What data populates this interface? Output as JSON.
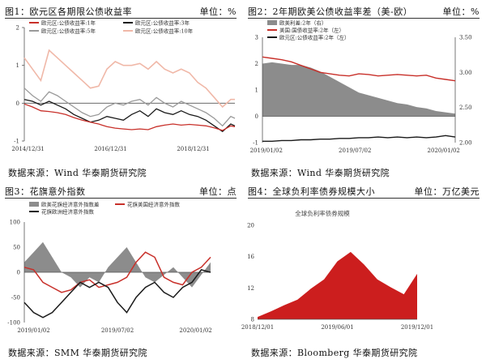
{
  "charts": [
    {
      "header": {
        "title": "图1：欧元区各期限公债收益率",
        "unit": "单位：%"
      },
      "source": "数据来源：Wind 华泰期货研究院"
    },
    {
      "header": {
        "title": "图2：2年期欧美公债收益率差（美-欧）",
        "unit": "单位：%"
      },
      "source": "数据来源：Wind 华泰期货研究院"
    },
    {
      "header": {
        "title": "图3：花旗意外指数",
        "unit": "单位：点"
      },
      "source": "数据来源：SMM 华泰期货研究院"
    },
    {
      "header": {
        "title": "图4：全球负利率债券规模大小",
        "unit": "单位：万亿美元"
      },
      "source": "数据来源：Bloomberg 华泰期货研究院"
    }
  ],
  "chart_data": [
    {
      "type": "line",
      "x_ticks": [
        "2014/12/31",
        "2016/12/31",
        "2018/12/31"
      ],
      "ylim": [
        -1,
        2
      ],
      "y_ticks": [
        -1,
        0,
        1,
        2
      ],
      "legend_position": "top",
      "series": [
        {
          "name": "欧元区:公债收益率:1年",
          "color": "#c8302a",
          "x": [
            2014.9,
            2015.1,
            2015.3,
            2015.5,
            2015.7,
            2015.9,
            2016.1,
            2016.3,
            2016.5,
            2016.7,
            2016.9,
            2017.1,
            2017.3,
            2017.5,
            2017.7,
            2017.9,
            2018.1,
            2018.3,
            2018.5,
            2018.7,
            2018.9,
            2019.1,
            2019.3,
            2019.5,
            2019.7,
            2019.9,
            2020.0
          ],
          "y": [
            -0.02,
            -0.1,
            -0.2,
            -0.22,
            -0.25,
            -0.3,
            -0.38,
            -0.45,
            -0.5,
            -0.55,
            -0.62,
            -0.66,
            -0.68,
            -0.7,
            -0.68,
            -0.7,
            -0.62,
            -0.58,
            -0.55,
            -0.58,
            -0.56,
            -0.58,
            -0.6,
            -0.65,
            -0.72,
            -0.6,
            -0.62
          ]
        },
        {
          "name": "欧元区:公债收益率:3年",
          "color": "#1a1a1a",
          "x": [
            2014.9,
            2015.1,
            2015.3,
            2015.5,
            2015.7,
            2015.9,
            2016.1,
            2016.3,
            2016.5,
            2016.7,
            2016.9,
            2017.1,
            2017.3,
            2017.5,
            2017.7,
            2017.9,
            2018.1,
            2018.3,
            2018.5,
            2018.7,
            2018.9,
            2019.1,
            2019.3,
            2019.5,
            2019.7,
            2019.9,
            2020.0
          ],
          "y": [
            0.1,
            0.05,
            -0.05,
            0.05,
            -0.05,
            -0.15,
            -0.3,
            -0.4,
            -0.5,
            -0.45,
            -0.35,
            -0.4,
            -0.45,
            -0.3,
            -0.2,
            -0.35,
            -0.15,
            -0.25,
            -0.3,
            -0.2,
            -0.3,
            -0.35,
            -0.45,
            -0.6,
            -0.75,
            -0.55,
            -0.6
          ]
        },
        {
          "name": "欧元区:公债收益率:5年",
          "color": "#9a9a9a",
          "x": [
            2014.9,
            2015.1,
            2015.3,
            2015.5,
            2015.7,
            2015.9,
            2016.1,
            2016.3,
            2016.5,
            2016.7,
            2016.9,
            2017.1,
            2017.3,
            2017.5,
            2017.7,
            2017.9,
            2018.1,
            2018.3,
            2018.5,
            2018.7,
            2018.9,
            2019.1,
            2019.3,
            2019.5,
            2019.7,
            2019.9,
            2020.0
          ],
          "y": [
            0.4,
            0.2,
            0.05,
            0.3,
            0.2,
            0.05,
            -0.1,
            -0.25,
            -0.35,
            -0.3,
            -0.1,
            0.0,
            -0.05,
            0.05,
            0.1,
            -0.05,
            0.15,
            0.0,
            -0.1,
            0.05,
            -0.05,
            -0.15,
            -0.25,
            -0.4,
            -0.6,
            -0.35,
            -0.4
          ]
        },
        {
          "name": "欧元区:公债收益率:10年",
          "color": "#f0b8a8",
          "x": [
            2014.9,
            2015.1,
            2015.3,
            2015.5,
            2015.7,
            2015.9,
            2016.1,
            2016.3,
            2016.5,
            2016.7,
            2016.9,
            2017.1,
            2017.3,
            2017.5,
            2017.7,
            2017.9,
            2018.1,
            2018.3,
            2018.5,
            2018.7,
            2018.9,
            2019.1,
            2019.3,
            2019.5,
            2019.7,
            2019.9,
            2020.0
          ],
          "y": [
            1.2,
            0.9,
            0.6,
            1.4,
            1.2,
            1.0,
            0.8,
            0.6,
            0.4,
            0.45,
            0.9,
            1.1,
            1.0,
            1.0,
            1.05,
            0.9,
            1.1,
            0.9,
            0.8,
            0.9,
            0.8,
            0.55,
            0.4,
            0.15,
            -0.1,
            0.1,
            0.1
          ]
        }
      ]
    },
    {
      "type": "area",
      "x_ticks": [
        "2019/01/02",
        "2019/07/02",
        "2020/01/02"
      ],
      "ylim": [
        -1,
        3
      ],
      "y_ticks": [
        -1,
        0,
        1,
        2,
        3
      ],
      "y2lim": [
        2.0,
        3.5
      ],
      "y2_ticks": [
        "2.00",
        "2.50",
        "3.00",
        "3.50"
      ],
      "legend_position": "top-left",
      "series": [
        {
          "name": "欧美利差:2年（右）",
          "color": "#8c8c8c",
          "axis": "left",
          "kind": "area",
          "x": [
            0,
            0.05,
            0.1,
            0.15,
            0.2,
            0.25,
            0.3,
            0.35,
            0.4,
            0.45,
            0.5,
            0.55,
            0.6,
            0.65,
            0.7,
            0.75,
            0.8,
            0.85,
            0.9,
            0.95,
            1.0
          ],
          "y": [
            2.0,
            2.05,
            2.0,
            1.95,
            1.95,
            1.85,
            1.7,
            1.5,
            1.3,
            1.1,
            0.9,
            0.8,
            0.7,
            0.6,
            0.5,
            0.45,
            0.35,
            0.3,
            0.2,
            0.15,
            0.1
          ]
        },
        {
          "name": "美国:国债收益率:2年（左）",
          "color": "#c8302a",
          "axis": "right",
          "kind": "line",
          "x": [
            0,
            0.05,
            0.1,
            0.15,
            0.2,
            0.25,
            0.3,
            0.35,
            0.4,
            0.45,
            0.5,
            0.55,
            0.6,
            0.65,
            0.7,
            0.75,
            0.8,
            0.85,
            0.9,
            0.95,
            1.0
          ],
          "y": [
            3.22,
            3.2,
            3.18,
            3.15,
            3.1,
            3.05,
            3.0,
            2.98,
            2.96,
            2.95,
            2.98,
            2.97,
            2.95,
            2.96,
            2.97,
            2.96,
            2.95,
            2.96,
            2.92,
            2.9,
            2.88
          ]
        },
        {
          "name": "欧元区:公债收益率:2年（左）",
          "color": "#1a1a1a",
          "axis": "right",
          "kind": "line",
          "x": [
            0,
            0.05,
            0.1,
            0.15,
            0.2,
            0.25,
            0.3,
            0.35,
            0.4,
            0.45,
            0.5,
            0.55,
            0.6,
            0.65,
            0.7,
            0.75,
            0.8,
            0.85,
            0.9,
            0.95,
            1.0
          ],
          "y": [
            2.02,
            2.02,
            2.03,
            2.03,
            2.04,
            2.04,
            2.05,
            2.05,
            2.06,
            2.06,
            2.07,
            2.07,
            2.08,
            2.07,
            2.08,
            2.07,
            2.08,
            2.07,
            2.08,
            2.1,
            2.08
          ]
        }
      ]
    },
    {
      "type": "area",
      "x_ticks": [
        "2019/01/02",
        "2019/07/02",
        "2020/01/02"
      ],
      "ylim": [
        -100,
        100
      ],
      "y_ticks": [
        -100,
        -50,
        0,
        50,
        100
      ],
      "legend_position": "top",
      "series": [
        {
          "name": "欧美花旗经济意外指数差",
          "color": "#8c8c8c",
          "kind": "area",
          "x": [
            0,
            0.05,
            0.1,
            0.15,
            0.2,
            0.25,
            0.3,
            0.35,
            0.4,
            0.45,
            0.5,
            0.55,
            0.6,
            0.65,
            0.7,
            0.75,
            0.8,
            0.85,
            0.9,
            0.95,
            1.0
          ],
          "y": [
            20,
            40,
            60,
            30,
            0,
            -10,
            -30,
            -10,
            -20,
            10,
            30,
            50,
            20,
            -10,
            -20,
            -5,
            10,
            -10,
            -30,
            -5,
            20
          ]
        },
        {
          "name": "花旗美国经济意外指数",
          "color": "#c8302a",
          "kind": "line",
          "x": [
            0,
            0.05,
            0.1,
            0.15,
            0.2,
            0.25,
            0.3,
            0.35,
            0.4,
            0.45,
            0.5,
            0.55,
            0.6,
            0.65,
            0.7,
            0.75,
            0.8,
            0.85,
            0.9,
            0.95,
            1.0
          ],
          "y": [
            10,
            5,
            -20,
            -30,
            -40,
            -35,
            -20,
            -15,
            -30,
            -25,
            -20,
            -10,
            20,
            40,
            30,
            -10,
            -20,
            -25,
            0,
            10,
            30
          ]
        },
        {
          "name": "花旗欧洲经济意外指数",
          "color": "#1a1a1a",
          "kind": "line",
          "x": [
            0,
            0.05,
            0.1,
            0.15,
            0.2,
            0.25,
            0.3,
            0.35,
            0.4,
            0.45,
            0.5,
            0.55,
            0.6,
            0.65,
            0.7,
            0.75,
            0.8,
            0.85,
            0.9,
            0.95,
            1.0
          ],
          "y": [
            -60,
            -80,
            -90,
            -80,
            -60,
            -40,
            -20,
            -30,
            -20,
            -30,
            -60,
            -80,
            -50,
            -30,
            -20,
            -40,
            -50,
            -30,
            -20,
            5,
            0
          ]
        }
      ]
    },
    {
      "type": "area",
      "title": "全球负利率债券规模",
      "x_ticks": [
        "2018/12/01",
        "2019/06/01",
        "2019/12/01"
      ],
      "ylim": [
        8,
        20
      ],
      "y_ticks": [
        8,
        12,
        16,
        20
      ],
      "series": [
        {
          "name": "全球负利率债券规模",
          "color": "#cc1e1e",
          "kind": "area",
          "x": [
            0,
            0.0833,
            0.1667,
            0.25,
            0.3333,
            0.4167,
            0.5,
            0.5833,
            0.6667,
            0.75,
            0.8333,
            0.9167,
            1.0
          ],
          "y": [
            8.3,
            9.0,
            9.8,
            10.5,
            11.9,
            13.1,
            15.4,
            16.6,
            15.0,
            13.1,
            12.1,
            11.2,
            13.8
          ]
        }
      ]
    }
  ]
}
